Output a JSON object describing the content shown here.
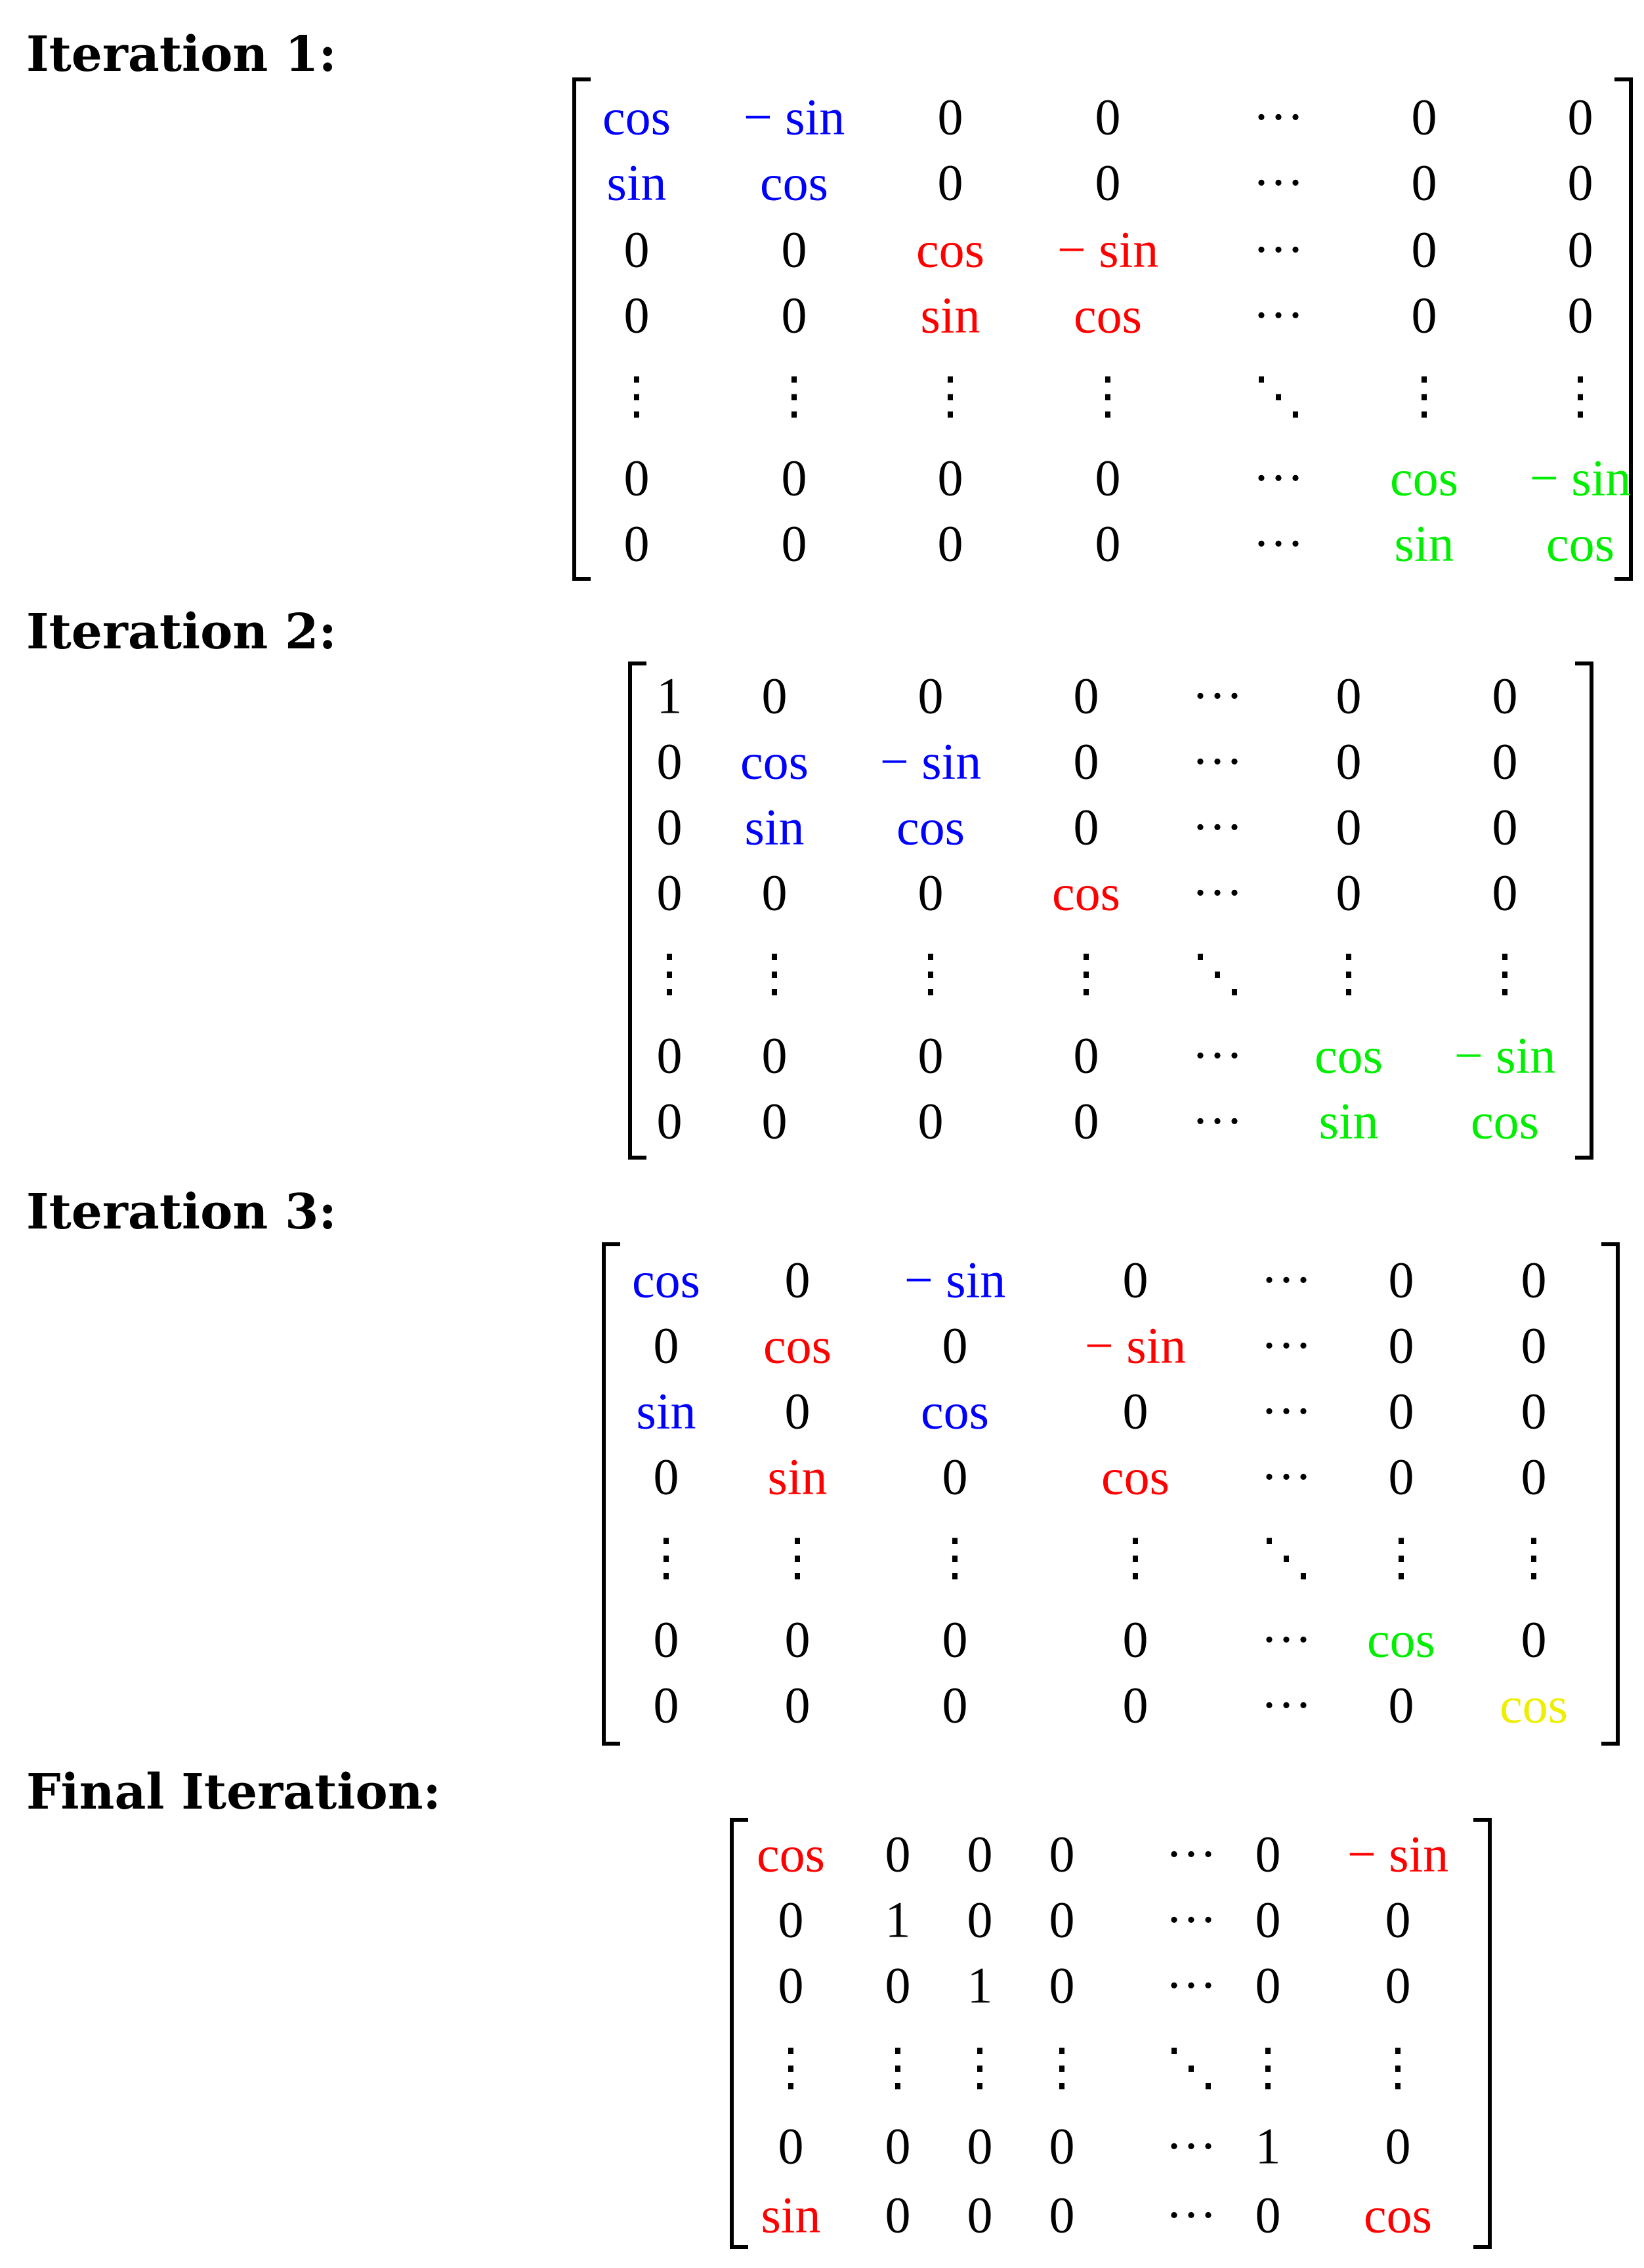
{
  "colors": {
    "blue": "#0000ff",
    "red": "#ff0000",
    "green": "#00ee00",
    "yellow": "#eeee00",
    "black": "#000000"
  },
  "iterations": [
    {
      "heading": "Iteration 1:",
      "rows": [
        [
          {
            "t": "cos",
            "c": "blue"
          },
          {
            "t": "− sin",
            "c": "blue"
          },
          {
            "t": "0"
          },
          {
            "t": "0"
          },
          {
            "t": "···"
          },
          {
            "t": "0"
          },
          {
            "t": "0"
          }
        ],
        [
          {
            "t": "sin",
            "c": "blue"
          },
          {
            "t": "cos",
            "c": "blue"
          },
          {
            "t": "0"
          },
          {
            "t": "0"
          },
          {
            "t": "···"
          },
          {
            "t": "0"
          },
          {
            "t": "0"
          }
        ],
        [
          {
            "t": "0"
          },
          {
            "t": "0"
          },
          {
            "t": "cos",
            "c": "red"
          },
          {
            "t": "− sin",
            "c": "red"
          },
          {
            "t": "···"
          },
          {
            "t": "0"
          },
          {
            "t": "0"
          }
        ],
        [
          {
            "t": "0"
          },
          {
            "t": "0"
          },
          {
            "t": "sin",
            "c": "red"
          },
          {
            "t": "cos",
            "c": "red"
          },
          {
            "t": "···"
          },
          {
            "t": "0"
          },
          {
            "t": "0"
          }
        ],
        [
          {
            "t": "⋮"
          },
          {
            "t": "⋮"
          },
          {
            "t": "⋮"
          },
          {
            "t": "⋮"
          },
          {
            "t": "⋱"
          },
          {
            "t": "⋮"
          },
          {
            "t": "⋮"
          }
        ],
        [
          {
            "t": "0"
          },
          {
            "t": "0"
          },
          {
            "t": "0"
          },
          {
            "t": "0"
          },
          {
            "t": "···"
          },
          {
            "t": "cos",
            "c": "green"
          },
          {
            "t": "− sin",
            "c": "green"
          }
        ],
        [
          {
            "t": "0"
          },
          {
            "t": "0"
          },
          {
            "t": "0"
          },
          {
            "t": "0"
          },
          {
            "t": "···"
          },
          {
            "t": "sin",
            "c": "green"
          },
          {
            "t": "cos",
            "c": "green"
          }
        ]
      ]
    },
    {
      "heading": "Iteration 2:",
      "rows": [
        [
          {
            "t": "1"
          },
          {
            "t": "0"
          },
          {
            "t": "0"
          },
          {
            "t": "0"
          },
          {
            "t": "···"
          },
          {
            "t": "0"
          },
          {
            "t": "0"
          }
        ],
        [
          {
            "t": "0"
          },
          {
            "t": "cos",
            "c": "blue"
          },
          {
            "t": "− sin",
            "c": "blue"
          },
          {
            "t": "0"
          },
          {
            "t": "···"
          },
          {
            "t": "0"
          },
          {
            "t": "0"
          }
        ],
        [
          {
            "t": "0"
          },
          {
            "t": "sin",
            "c": "blue"
          },
          {
            "t": "cos",
            "c": "blue"
          },
          {
            "t": "0"
          },
          {
            "t": "···"
          },
          {
            "t": "0"
          },
          {
            "t": "0"
          }
        ],
        [
          {
            "t": "0"
          },
          {
            "t": "0"
          },
          {
            "t": "0"
          },
          {
            "t": "cos",
            "c": "red"
          },
          {
            "t": "···"
          },
          {
            "t": "0"
          },
          {
            "t": "0"
          }
        ],
        [
          {
            "t": "⋮"
          },
          {
            "t": "⋮"
          },
          {
            "t": "⋮"
          },
          {
            "t": "⋮"
          },
          {
            "t": "⋱"
          },
          {
            "t": "⋮"
          },
          {
            "t": "⋮"
          }
        ],
        [
          {
            "t": "0"
          },
          {
            "t": "0"
          },
          {
            "t": "0"
          },
          {
            "t": "0"
          },
          {
            "t": "···"
          },
          {
            "t": "cos",
            "c": "green"
          },
          {
            "t": "− sin",
            "c": "green"
          }
        ],
        [
          {
            "t": "0"
          },
          {
            "t": "0"
          },
          {
            "t": "0"
          },
          {
            "t": "0"
          },
          {
            "t": "···"
          },
          {
            "t": "sin",
            "c": "green"
          },
          {
            "t": "cos",
            "c": "green"
          }
        ]
      ]
    },
    {
      "heading": "Iteration 3:",
      "rows": [
        [
          {
            "t": "cos",
            "c": "blue"
          },
          {
            "t": "0"
          },
          {
            "t": "− sin",
            "c": "blue"
          },
          {
            "t": "0"
          },
          {
            "t": "···"
          },
          {
            "t": "0"
          },
          {
            "t": "0"
          }
        ],
        [
          {
            "t": "0"
          },
          {
            "t": "cos",
            "c": "red"
          },
          {
            "t": "0"
          },
          {
            "t": "− sin",
            "c": "red"
          },
          {
            "t": "···"
          },
          {
            "t": "0"
          },
          {
            "t": "0"
          }
        ],
        [
          {
            "t": "sin",
            "c": "blue"
          },
          {
            "t": "0"
          },
          {
            "t": "cos",
            "c": "blue"
          },
          {
            "t": "0"
          },
          {
            "t": "···"
          },
          {
            "t": "0"
          },
          {
            "t": "0"
          }
        ],
        [
          {
            "t": "0"
          },
          {
            "t": "sin",
            "c": "red"
          },
          {
            "t": "0"
          },
          {
            "t": "cos",
            "c": "red"
          },
          {
            "t": "···"
          },
          {
            "t": "0"
          },
          {
            "t": "0"
          }
        ],
        [
          {
            "t": "⋮"
          },
          {
            "t": "⋮"
          },
          {
            "t": "⋮"
          },
          {
            "t": "⋮"
          },
          {
            "t": "⋱"
          },
          {
            "t": "⋮"
          },
          {
            "t": "⋮"
          }
        ],
        [
          {
            "t": "0"
          },
          {
            "t": "0"
          },
          {
            "t": "0"
          },
          {
            "t": "0"
          },
          {
            "t": "···"
          },
          {
            "t": "cos",
            "c": "green"
          },
          {
            "t": "0"
          }
        ],
        [
          {
            "t": "0"
          },
          {
            "t": "0"
          },
          {
            "t": "0"
          },
          {
            "t": "0"
          },
          {
            "t": "···"
          },
          {
            "t": "0"
          },
          {
            "t": "cos",
            "c": "yellow"
          }
        ]
      ]
    },
    {
      "heading": "Final Iteration:",
      "rows": [
        [
          {
            "t": "cos",
            "c": "red"
          },
          {
            "t": "0"
          },
          {
            "t": "0"
          },
          {
            "t": "0"
          },
          {
            "t": "···"
          },
          {
            "t": "0"
          },
          {
            "t": "− sin",
            "c": "red"
          }
        ],
        [
          {
            "t": "0"
          },
          {
            "t": "1"
          },
          {
            "t": "0"
          },
          {
            "t": "0"
          },
          {
            "t": "···"
          },
          {
            "t": "0"
          },
          {
            "t": "0"
          }
        ],
        [
          {
            "t": "0"
          },
          {
            "t": "0"
          },
          {
            "t": "1"
          },
          {
            "t": "0"
          },
          {
            "t": "···"
          },
          {
            "t": "0"
          },
          {
            "t": "0"
          }
        ],
        [
          {
            "t": "⋮"
          },
          {
            "t": "⋮"
          },
          {
            "t": "⋮"
          },
          {
            "t": "⋮"
          },
          {
            "t": "⋱"
          },
          {
            "t": "⋮"
          },
          {
            "t": "⋮"
          }
        ],
        [
          {
            "t": "0"
          },
          {
            "t": "0"
          },
          {
            "t": "0"
          },
          {
            "t": "0"
          },
          {
            "t": "···"
          },
          {
            "t": "1"
          },
          {
            "t": "0"
          }
        ],
        [
          {
            "t": "sin",
            "c": "red"
          },
          {
            "t": "0"
          },
          {
            "t": "0"
          },
          {
            "t": "0"
          },
          {
            "t": "···"
          },
          {
            "t": "0"
          },
          {
            "t": "cos",
            "c": "red"
          }
        ]
      ]
    }
  ]
}
